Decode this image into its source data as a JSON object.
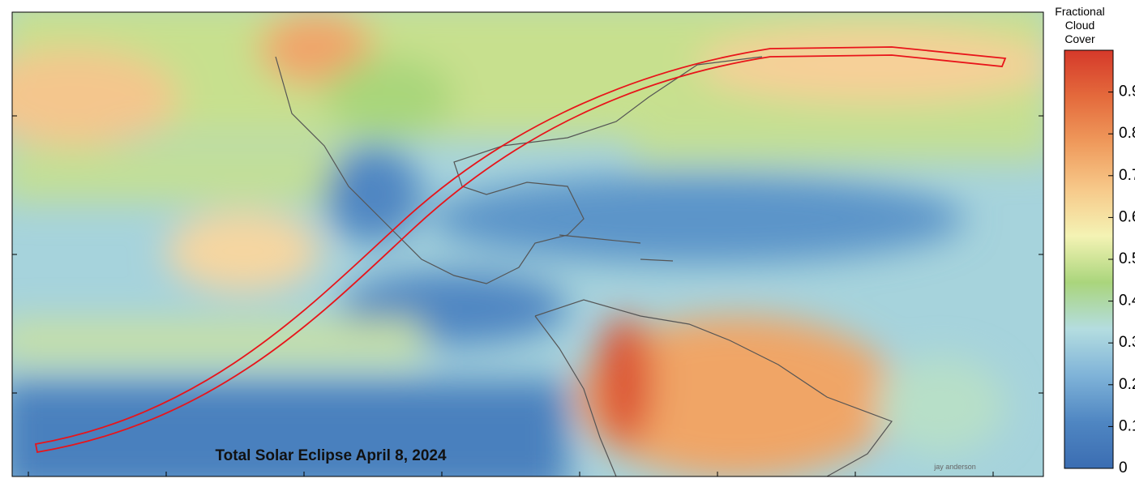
{
  "map": {
    "title": "Total Solar Eclipse April 8, 2024",
    "credit": "jay anderson",
    "colorbar": {
      "label_lines": [
        "Fractional",
        "Cloud",
        "Cover"
      ],
      "range": [
        0,
        1
      ],
      "ticks": [
        0,
        0.1,
        0.2,
        0.3,
        0.4,
        0.5,
        0.6,
        0.7,
        0.8,
        0.9
      ],
      "colors": [
        "#3b6db2",
        "#4f86c2",
        "#7fb3d8",
        "#b4dde0",
        "#aad57c",
        "#f4f3b4",
        "#f7c98a",
        "#ef9a5c",
        "#e46a3c",
        "#d5392a"
      ]
    }
  }
}
